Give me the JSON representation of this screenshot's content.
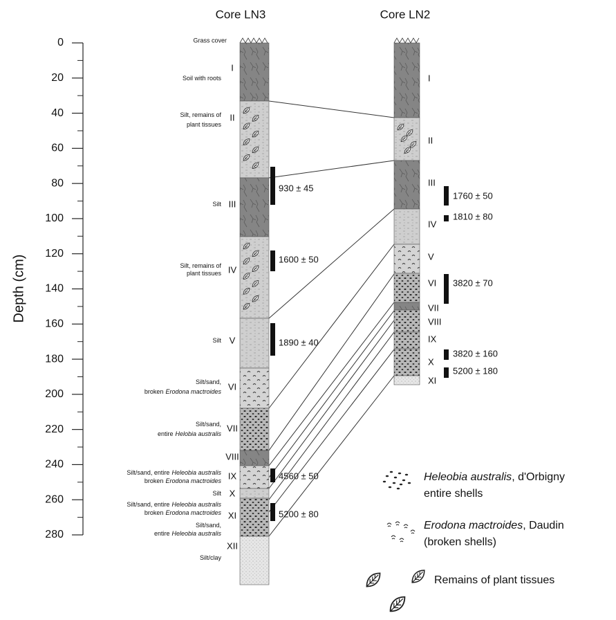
{
  "titles": {
    "ln3": "Core LN3",
    "ln2": "Core LN2"
  },
  "axis": {
    "label": "Depth  (cm)",
    "ticks": [
      0,
      20,
      40,
      60,
      80,
      100,
      120,
      140,
      160,
      180,
      200,
      220,
      240,
      260,
      280
    ]
  },
  "ln3": {
    "top_note": "Grass cover",
    "units": [
      {
        "numeral": "I",
        "description": [
          {
            "text": "Soil with roots"
          }
        ]
      },
      {
        "numeral": "II",
        "description": [
          {
            "text": "Silt, remains of"
          },
          {
            "text": "plant tissues"
          }
        ]
      },
      {
        "numeral": "III",
        "description": [
          {
            "text": "Silt"
          }
        ]
      },
      {
        "numeral": "IV",
        "description": [
          {
            "text": "Silt, remains of"
          },
          {
            "text": "plant tissues"
          }
        ]
      },
      {
        "numeral": "V",
        "description": [
          {
            "text": "Silt"
          }
        ]
      },
      {
        "numeral": "VI",
        "description": [
          {
            "text": "Silt/sand,"
          },
          {
            "text": "broken",
            "species": "Erodona mactroides"
          }
        ]
      },
      {
        "numeral": "VII",
        "description": [
          {
            "text": "Silt/sand,"
          },
          {
            "text": "entire",
            "species": "Helobia australis"
          }
        ]
      },
      {
        "numeral": "VIII",
        "description": []
      },
      {
        "numeral": "IX",
        "description": [
          {
            "text": "Silt/sand, entire",
            "species": "Heleobia australis"
          },
          {
            "text": "broken",
            "species": "Erodona mactroides"
          }
        ]
      },
      {
        "numeral": "X",
        "description": [
          {
            "text": "Silt"
          }
        ]
      },
      {
        "numeral": "XI",
        "description": [
          {
            "text": "Silt/sand, entire",
            "species": "Heleobia australis"
          },
          {
            "text": "broken",
            "species": "Erodona mactroides"
          },
          {
            "text": "Silt/sand,"
          },
          {
            "text": "entire",
            "species": "Heleobia australis"
          }
        ]
      },
      {
        "numeral": "XII",
        "description": [
          {
            "text": "Silt/clay"
          }
        ]
      }
    ],
    "dates": [
      "930 ± 45",
      "1600 ± 50",
      "1890 ± 40",
      "4560 ± 50",
      "5200 ± 80"
    ]
  },
  "ln2": {
    "units": [
      {
        "numeral": "I"
      },
      {
        "numeral": "II"
      },
      {
        "numeral": "III"
      },
      {
        "numeral": "IV"
      },
      {
        "numeral": "V"
      },
      {
        "numeral": "VI"
      },
      {
        "numeral": "VII"
      },
      {
        "numeral": "VIII"
      },
      {
        "numeral": "IX"
      },
      {
        "numeral": "X"
      },
      {
        "numeral": "XI"
      }
    ],
    "dates": [
      "1760 ± 50",
      "1810 ± 80",
      "3820 ± 70",
      "3820 ± 160",
      "5200 ± 180"
    ]
  },
  "legend": [
    {
      "species": "Heleobia australis",
      "author": ",  d'Orbigny",
      "note": "entire shells"
    },
    {
      "species": "Erodona mactroides",
      "author": ", Daudin",
      "note": "(broken shells)"
    },
    {
      "text": "Remains of plant tissues"
    }
  ]
}
